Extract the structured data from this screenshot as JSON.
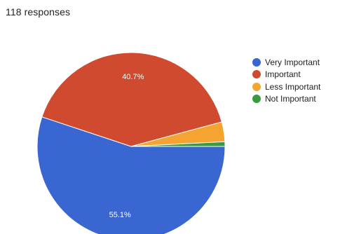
{
  "responses_label": "118 responses",
  "chart_data": {
    "type": "pie",
    "categories": [
      "Very Important",
      "Important",
      "Less Important",
      "Not Important"
    ],
    "values": [
      55.1,
      40.7,
      3.4,
      0.8
    ],
    "slice_labels": [
      "55.1%",
      "40.7%",
      "",
      ""
    ],
    "colors": [
      "#3a66d1",
      "#d04a30",
      "#f5a331",
      "#3a9a3e"
    ],
    "legend_position": "right"
  }
}
